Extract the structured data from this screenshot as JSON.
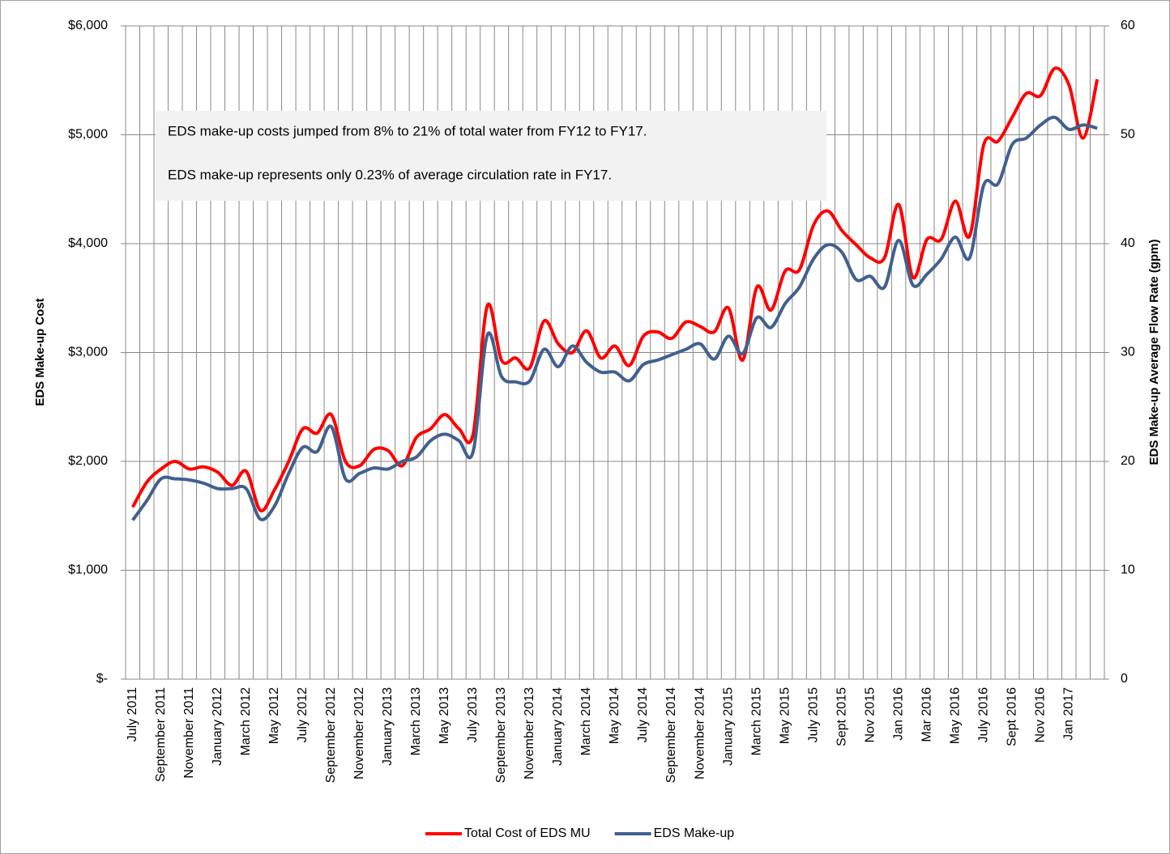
{
  "chart_data": {
    "type": "line",
    "annotations": [
      "EDS make-up costs jumped from 8% to 21% of total water from FY12 to FY17.",
      "EDS make-up represents only 0.23% of average circulation rate in FY17."
    ],
    "y_label": "EDS Make-up Cost",
    "y2_label": "EDS Make-up Average Flow Rate (gpm)",
    "categories": [
      "July 2011",
      null,
      "September 2011",
      null,
      "November 2011",
      null,
      "January 2012",
      null,
      "March 2012",
      null,
      "May 2012",
      null,
      "July 2012",
      null,
      "September 2012",
      null,
      "November 2012",
      null,
      "January 2013",
      null,
      "March 2013",
      null,
      "May 2013",
      null,
      "July 2013",
      null,
      "September 2013",
      null,
      "November 2013",
      null,
      "January 2014",
      null,
      "March 2014",
      null,
      "May 2014",
      null,
      "July 2014",
      null,
      "September 2014",
      null,
      "November 2014",
      null,
      "January 2015",
      null,
      "March 2015",
      null,
      "May 2015",
      null,
      "July 2015",
      null,
      "Sept 2015",
      null,
      "Nov 2015",
      null,
      "Jan 2016",
      null,
      "Mar 2016",
      null,
      "May 2016",
      null,
      "July 2016",
      null,
      "Sept 2016",
      null,
      "Nov 2016",
      null,
      "Jan 2017",
      null,
      null
    ],
    "series": [
      {
        "name": "Total Cost of EDS MU",
        "color": "#ff0000",
        "values": [
          1580,
          1810,
          1930,
          2000,
          1930,
          1950,
          1900,
          1780,
          1910,
          1550,
          1740,
          2000,
          2300,
          2260,
          2430,
          2000,
          1960,
          2110,
          2100,
          1960,
          2220,
          2300,
          2430,
          2300,
          2250,
          3430,
          2930,
          2950,
          2860,
          3290,
          3080,
          3000,
          3200,
          2950,
          3060,
          2880,
          3150,
          3190,
          3130,
          3280,
          3240,
          3190,
          3410,
          2930,
          3600,
          3390,
          3750,
          3760,
          4170,
          4300,
          4120,
          3990,
          3870,
          3870,
          4360,
          3690,
          4040,
          4040,
          4390,
          4070,
          4910,
          4940,
          5160,
          5380,
          5360,
          5610,
          5460,
          4970,
          5510
        ]
      },
      {
        "name": "EDS Make-up",
        "color": "#41608f",
        "axis": "y2",
        "values": [
          14.6,
          16.4,
          18.4,
          18.4,
          18.3,
          18.0,
          17.5,
          17.5,
          17.5,
          14.7,
          15.9,
          18.9,
          21.3,
          20.9,
          23.2,
          18.4,
          18.9,
          19.4,
          19.3,
          20.0,
          20.4,
          21.9,
          22.5,
          21.9,
          20.9,
          31.6,
          27.8,
          27.3,
          27.4,
          30.3,
          28.7,
          30.6,
          29.1,
          28.2,
          28.2,
          27.4,
          28.9,
          29.3,
          29.8,
          30.3,
          30.8,
          29.4,
          31.5,
          29.9,
          33.2,
          32.3,
          34.5,
          36.0,
          38.6,
          39.9,
          39.2,
          36.7,
          37.0,
          36.0,
          40.3,
          36.2,
          37.2,
          38.6,
          40.6,
          38.7,
          45.4,
          45.5,
          49.1,
          49.7,
          50.9,
          51.6,
          50.5,
          50.9,
          50.6
        ]
      }
    ],
    "ylim": [
      0,
      6000
    ],
    "yticks": [
      {
        "value": 0,
        "label": "$-"
      },
      {
        "value": 1000,
        "label": "$1,000"
      },
      {
        "value": 2000,
        "label": "$2,000"
      },
      {
        "value": 3000,
        "label": "$3,000"
      },
      {
        "value": 4000,
        "label": "$4,000"
      },
      {
        "value": 5000,
        "label": "$5,000"
      },
      {
        "value": 6000,
        "label": "$6,000"
      }
    ],
    "y2lim": [
      0,
      60
    ],
    "y2ticks": [
      0,
      10,
      20,
      30,
      40,
      50,
      60
    ],
    "grid": true,
    "legend": "bottom"
  }
}
